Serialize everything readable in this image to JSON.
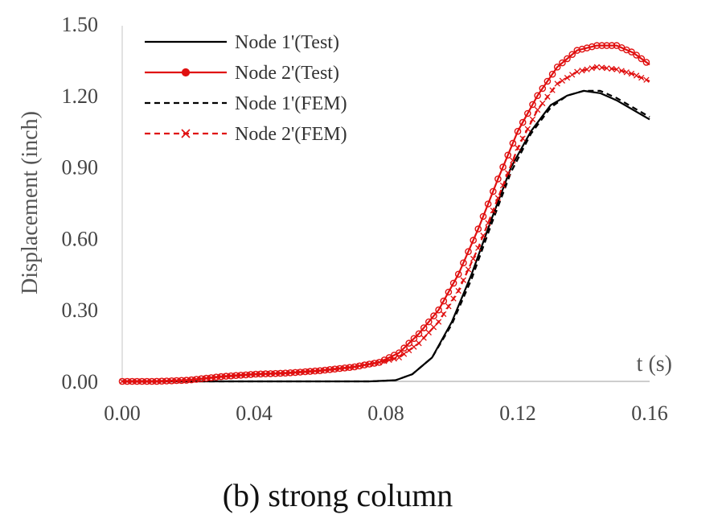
{
  "caption": "(b) strong column",
  "chart_data": {
    "type": "line",
    "xlabel": "t (s)",
    "ylabel": "Displacement (inch)",
    "xlim": [
      0,
      0.16
    ],
    "ylim": [
      0,
      1.5
    ],
    "x_ticks": [
      0.0,
      0.04,
      0.08,
      0.12,
      0.16
    ],
    "x_tick_labels": [
      "0.00",
      "0.04",
      "0.08",
      "0.12",
      "0.16"
    ],
    "y_ticks": [
      0.0,
      0.3,
      0.6,
      0.9,
      1.2,
      1.5
    ],
    "y_tick_labels": [
      "0.00",
      "0.30",
      "0.60",
      "0.90",
      "1.20",
      "1.50"
    ],
    "grid": false,
    "legend_position": "top-left",
    "series": [
      {
        "name": "Node 1'(Test)",
        "color": "#000000",
        "style": "solid",
        "marker": "none",
        "points": [
          [
            0.0,
            0.0
          ],
          [
            0.02,
            0.0
          ],
          [
            0.04,
            0.0
          ],
          [
            0.06,
            0.0
          ],
          [
            0.075,
            0.0
          ],
          [
            0.083,
            0.005
          ],
          [
            0.088,
            0.03
          ],
          [
            0.094,
            0.1
          ],
          [
            0.1,
            0.25
          ],
          [
            0.106,
            0.45
          ],
          [
            0.112,
            0.68
          ],
          [
            0.118,
            0.9
          ],
          [
            0.124,
            1.05
          ],
          [
            0.13,
            1.16
          ],
          [
            0.135,
            1.2
          ],
          [
            0.14,
            1.22
          ],
          [
            0.145,
            1.21
          ],
          [
            0.15,
            1.18
          ],
          [
            0.155,
            1.14
          ],
          [
            0.16,
            1.1
          ]
        ]
      },
      {
        "name": "Node 2'(Test)",
        "color": "#e01010",
        "style": "solid",
        "marker": "circle",
        "points": [
          [
            0.0,
            0.0
          ],
          [
            0.01,
            0.0
          ],
          [
            0.02,
            0.005
          ],
          [
            0.03,
            0.02
          ],
          [
            0.04,
            0.03
          ],
          [
            0.05,
            0.035
          ],
          [
            0.06,
            0.045
          ],
          [
            0.07,
            0.06
          ],
          [
            0.078,
            0.08
          ],
          [
            0.084,
            0.12
          ],
          [
            0.09,
            0.2
          ],
          [
            0.096,
            0.3
          ],
          [
            0.102,
            0.45
          ],
          [
            0.108,
            0.64
          ],
          [
            0.114,
            0.85
          ],
          [
            0.12,
            1.05
          ],
          [
            0.126,
            1.2
          ],
          [
            0.132,
            1.32
          ],
          [
            0.138,
            1.39
          ],
          [
            0.144,
            1.41
          ],
          [
            0.15,
            1.41
          ],
          [
            0.155,
            1.38
          ],
          [
            0.16,
            1.33
          ]
        ]
      },
      {
        "name": "Node 1'(FEM)",
        "color": "#000000",
        "style": "dashed",
        "marker": "none",
        "points": [
          [
            0.0,
            0.0
          ],
          [
            0.02,
            0.0
          ],
          [
            0.04,
            0.0
          ],
          [
            0.06,
            0.0
          ],
          [
            0.075,
            0.0
          ],
          [
            0.083,
            0.005
          ],
          [
            0.088,
            0.03
          ],
          [
            0.094,
            0.1
          ],
          [
            0.1,
            0.24
          ],
          [
            0.106,
            0.43
          ],
          [
            0.112,
            0.66
          ],
          [
            0.118,
            0.88
          ],
          [
            0.124,
            1.04
          ],
          [
            0.13,
            1.15
          ],
          [
            0.135,
            1.2
          ],
          [
            0.14,
            1.22
          ],
          [
            0.145,
            1.22
          ],
          [
            0.15,
            1.19
          ],
          [
            0.155,
            1.15
          ],
          [
            0.16,
            1.11
          ]
        ]
      },
      {
        "name": "Node 2'(FEM)",
        "color": "#e01010",
        "style": "dashed",
        "marker": "x",
        "points": [
          [
            0.0,
            0.0
          ],
          [
            0.01,
            0.0
          ],
          [
            0.02,
            0.005
          ],
          [
            0.03,
            0.02
          ],
          [
            0.04,
            0.03
          ],
          [
            0.05,
            0.035
          ],
          [
            0.06,
            0.045
          ],
          [
            0.07,
            0.06
          ],
          [
            0.078,
            0.08
          ],
          [
            0.084,
            0.1
          ],
          [
            0.09,
            0.16
          ],
          [
            0.096,
            0.25
          ],
          [
            0.102,
            0.38
          ],
          [
            0.108,
            0.56
          ],
          [
            0.114,
            0.77
          ],
          [
            0.12,
            0.98
          ],
          [
            0.126,
            1.14
          ],
          [
            0.132,
            1.25
          ],
          [
            0.138,
            1.3
          ],
          [
            0.144,
            1.32
          ],
          [
            0.15,
            1.31
          ],
          [
            0.155,
            1.29
          ],
          [
            0.16,
            1.26
          ]
        ]
      }
    ]
  }
}
